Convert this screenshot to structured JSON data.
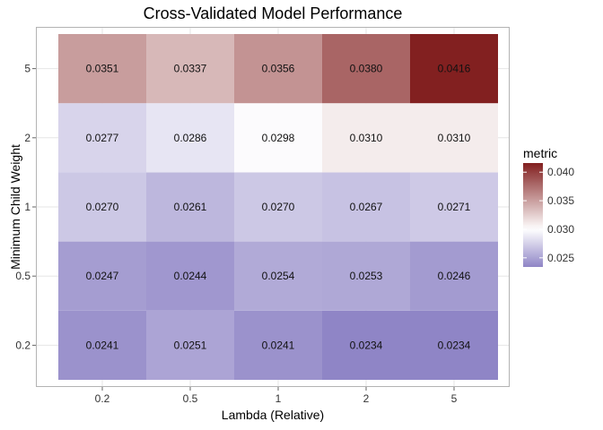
{
  "chart_data": {
    "type": "heatmap",
    "title": "Cross-Validated Model Performance",
    "xlabel": "Lambda (Relative)",
    "ylabel": "Minimum Child Weight",
    "x_categories": [
      "0.2",
      "0.5",
      "1",
      "2",
      "5"
    ],
    "y_categories": [
      "0.2",
      "0.5",
      "1",
      "2",
      "5"
    ],
    "values": [
      [
        0.0241,
        0.0251,
        0.0241,
        0.0234,
        0.0234
      ],
      [
        0.0247,
        0.0244,
        0.0254,
        0.0253,
        0.0246
      ],
      [
        0.027,
        0.0261,
        0.027,
        0.0267,
        0.0271
      ],
      [
        0.0277,
        0.0286,
        0.0298,
        0.031,
        0.031
      ],
      [
        0.0351,
        0.0337,
        0.0356,
        0.038,
        0.0416
      ]
    ],
    "value_labels": [
      [
        "0.0241",
        "0.0251",
        "0.0241",
        "0.0234",
        "0.0234"
      ],
      [
        "0.0247",
        "0.0244",
        "0.0254",
        "0.0253",
        "0.0246"
      ],
      [
        "0.0270",
        "0.0261",
        "0.0270",
        "0.0267",
        "0.0271"
      ],
      [
        "0.0277",
        "0.0286",
        "0.0298",
        "0.0310",
        "0.0310"
      ],
      [
        "0.0351",
        "0.0337",
        "0.0356",
        "0.0380",
        "0.0416"
      ]
    ],
    "legend": {
      "title": "metric",
      "ticks": [
        0.025,
        0.03,
        0.035,
        0.04
      ],
      "tick_labels": [
        "0.025",
        "0.030",
        "0.035",
        "0.040"
      ],
      "min": 0.0234,
      "mid": 0.03,
      "max": 0.0416,
      "placement": "right"
    },
    "colors": {
      "low": "#8f85c6",
      "mid": "#ffffff",
      "high": "#822020"
    },
    "grid": true
  }
}
